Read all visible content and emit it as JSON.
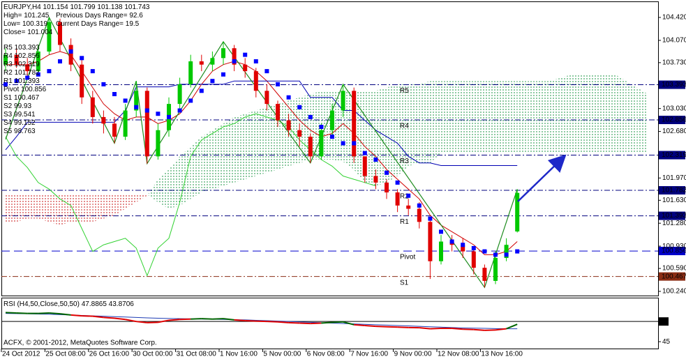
{
  "chart_data": {
    "type": "candlestick",
    "symbol": "EURJPY,H4",
    "info": [
      {
        "label": "High=",
        "value": 101.245
      },
      {
        "label": "Low=",
        "value": 100.319
      },
      {
        "label": "Close=",
        "value": 101.004
      },
      {
        "label": "Previous Days Range=",
        "value": 92.6
      },
      {
        "label": "Current Days Range=",
        "value": 19.5
      }
    ],
    "categories": [
      "24 Oct 2012",
      null,
      null,
      null,
      "25 Oct 08:00",
      null,
      null,
      null,
      "26 Oct 16:00",
      null,
      null,
      null,
      "30 Oct 00:00",
      null,
      null,
      null,
      "31 Oct 08:00",
      null,
      null,
      null,
      "1 Nov 16:00",
      null,
      null,
      null,
      "5 Nov 00:00",
      null,
      null,
      null,
      "6 Nov 08:00",
      null,
      null,
      null,
      "7 Nov 16:00",
      null,
      null,
      null,
      "9 Nov 00:00",
      null,
      null,
      null,
      "12 Nov 08:00",
      null,
      null,
      null,
      "13 Nov 16:00",
      null,
      null,
      null
    ],
    "open": [
      103.7,
      103.85,
      103.7,
      103.6,
      103.9,
      104.35,
      104.0,
      103.7,
      103.2,
      102.9,
      102.8,
      102.6,
      103.0,
      103.3,
      102.3,
      102.7,
      103.1,
      103.4,
      103.75,
      103.7,
      103.8,
      103.95,
      103.7,
      103.6,
      103.3,
      103.1,
      102.85,
      102.7,
      102.6,
      102.3,
      102.7,
      103.0,
      103.3,
      102.3,
      102.0,
      101.9,
      101.75,
      101.55,
      101.5,
      101.3,
      100.7,
      101.0,
      100.95,
      100.85,
      100.6,
      100.4,
      100.75,
      101.154
    ],
    "high": [
      103.95,
      103.95,
      103.8,
      104.0,
      104.42,
      104.4,
      104.1,
      103.8,
      103.3,
      103.0,
      102.9,
      103.1,
      103.45,
      103.35,
      102.8,
      103.2,
      103.5,
      103.85,
      103.85,
      103.9,
      104.05,
      104.0,
      103.8,
      103.65,
      103.4,
      103.15,
      102.95,
      102.8,
      102.65,
      102.8,
      103.1,
      103.4,
      103.35,
      102.3,
      102.1,
      101.95,
      101.8,
      101.65,
      101.6,
      101.35,
      101.1,
      101.1,
      101.05,
      100.9,
      100.65,
      100.85,
      101.05,
      101.799
    ],
    "low": [
      103.6,
      103.65,
      103.5,
      103.55,
      103.85,
      103.9,
      103.6,
      103.1,
      102.8,
      102.65,
      102.5,
      102.55,
      102.9,
      102.19,
      102.25,
      102.6,
      103.0,
      103.35,
      103.6,
      103.6,
      103.7,
      103.6,
      103.5,
      103.2,
      103.0,
      102.75,
      102.6,
      102.45,
      102.2,
      102.25,
      102.6,
      102.9,
      102.2,
      101.9,
      101.8,
      101.65,
      101.45,
      101.4,
      101.2,
      100.43,
      100.65,
      100.85,
      100.75,
      100.5,
      100.3,
      100.35,
      100.7,
      101.138
    ],
    "close": [
      103.85,
      103.7,
      103.6,
      103.9,
      104.35,
      104.0,
      103.7,
      103.2,
      102.9,
      102.8,
      102.6,
      103.0,
      103.3,
      102.3,
      102.7,
      103.1,
      103.4,
      103.75,
      103.7,
      103.8,
      103.95,
      103.7,
      103.6,
      103.3,
      103.1,
      102.85,
      102.7,
      102.6,
      102.3,
      102.7,
      103.0,
      103.3,
      102.3,
      102.0,
      101.9,
      101.75,
      101.55,
      101.5,
      101.3,
      100.7,
      101.0,
      100.95,
      100.85,
      100.6,
      100.4,
      100.75,
      100.95,
      101.743
    ],
    "up_color": "#00c800",
    "down_color": "#e00000",
    "ylim": [
      100.176,
      104.654
    ],
    "yticks": [
      {
        "value": 104.42,
        "label": "104.420"
      },
      {
        "value": 104.07,
        "label": "104.070"
      },
      {
        "value": 103.73,
        "label": "103.730"
      },
      {
        "value": 103.03,
        "label": "103.030"
      },
      {
        "value": 102.68,
        "label": "102.680"
      },
      {
        "value": 101.97,
        "label": "101.970"
      },
      {
        "value": 101.63,
        "label": "101.630"
      },
      {
        "value": 101.28,
        "label": "101.280"
      },
      {
        "value": 100.93,
        "label": "100.930"
      },
      {
        "value": 100.59,
        "label": "100.590"
      },
      {
        "value": 100.24,
        "label": "100.240"
      }
    ],
    "lines": [
      {
        "color": "#d00000",
        "values": [
          103.7,
          103.7,
          103.7,
          103.75,
          103.85,
          103.9,
          103.85,
          103.6,
          103.35,
          103.1,
          102.95,
          102.85,
          102.9,
          102.9,
          102.8,
          102.85,
          102.95,
          103.15,
          103.4,
          103.6,
          103.7,
          103.75,
          103.7,
          103.6,
          103.45,
          103.25,
          103.05,
          102.85,
          102.7,
          102.6,
          102.65,
          102.8,
          102.65,
          102.45,
          102.3,
          102.1,
          101.95,
          101.8,
          101.65,
          101.4,
          101.25,
          101.15,
          101.05,
          100.95,
          100.8,
          100.8,
          100.85,
          101.0
        ]
      },
      {
        "color": "#0000b4",
        "values": [
          102.4,
          102.6,
          102.82,
          102.82,
          102.82,
          102.82,
          102.82,
          102.82,
          102.82,
          102.82,
          102.82,
          103.0,
          103.36,
          103.36,
          103.36,
          103.36,
          103.4,
          103.4,
          103.4,
          103.4,
          103.4,
          103.45,
          103.45,
          103.45,
          103.45,
          103.45,
          103.45,
          103.45,
          103.2,
          103.2,
          103.2,
          103.0,
          103.0,
          102.85,
          102.7,
          102.6,
          102.5,
          102.3,
          102.2,
          102.2,
          102.16,
          102.16,
          102.16,
          102.16,
          102.16,
          102.16,
          102.16,
          102.16
        ]
      },
      {
        "color": "#32d232",
        "values": [
          102.6,
          102.3,
          102.13,
          101.9,
          101.8,
          101.65,
          101.55,
          101.2,
          100.85,
          100.95,
          101.0,
          101.05,
          100.9,
          100.48,
          100.9,
          101.05,
          101.6,
          102.3,
          102.55,
          102.65,
          102.75,
          102.8,
          102.9,
          102.95,
          102.9,
          102.85,
          102.75,
          102.55,
          102.4,
          102.25,
          102.15,
          102.0,
          101.95,
          101.9,
          101.85,
          null,
          null,
          null,
          null,
          null,
          null,
          null,
          null,
          null,
          null,
          null,
          null,
          null
        ]
      }
    ],
    "psar": {
      "color": "#0000ff",
      "values": [
        103.4,
        103.45,
        103.5,
        103.55,
        103.6,
        103.75,
        103.9,
        103.8,
        103.6,
        103.4,
        103.25,
        103.15,
        103.05,
        103.0,
        102.95,
        102.9,
        103.0,
        103.15,
        103.3,
        103.45,
        103.55,
        103.75,
        103.85,
        103.75,
        103.6,
        103.4,
        103.2,
        103.05,
        102.9,
        102.75,
        102.6,
        102.5,
        102.5,
        102.35,
        102.25,
        102.05,
        101.9,
        101.7,
        101.55,
        101.35,
        101.15,
        101.0,
        100.95,
        100.9,
        100.85,
        100.8,
        100.8,
        100.85
      ]
    },
    "zigzag": {
      "color": "#1e8c1e",
      "x": [
        0,
        4,
        10,
        12,
        13,
        20,
        28,
        31,
        44,
        47
      ],
      "values": [
        102.56,
        104.42,
        102.5,
        103.45,
        102.19,
        104.05,
        102.2,
        103.4,
        100.3,
        101.799
      ]
    },
    "cloud": {
      "up_color": "#1e9646",
      "down_color": "#c81414",
      "span_a": [
        101.3,
        101.3,
        101.35,
        101.35,
        101.3,
        101.25,
        101.3,
        101.3,
        101.3,
        101.35,
        101.4,
        101.5,
        101.6,
        101.7,
        101.95,
        102.1,
        102.3,
        102.45,
        102.6,
        102.7,
        102.8,
        102.9,
        102.95,
        103.0,
        103.05,
        103.1,
        103.15,
        103.2,
        103.25,
        103.3,
        103.3,
        103.3,
        103.3,
        103.3,
        103.3,
        103.35,
        103.4,
        103.4,
        103.4,
        103.45,
        103.45,
        103.45,
        103.45,
        103.45,
        103.45,
        103.45,
        103.45,
        103.45,
        103.45,
        103.45,
        103.45,
        103.5,
        103.55,
        103.55,
        103.55,
        103.55,
        103.55,
        103.45,
        103.35,
        103.25
      ],
      "span_b": [
        101.72,
        101.72,
        101.72,
        101.72,
        101.72,
        101.72,
        101.72,
        101.72,
        101.72,
        101.72,
        101.72,
        101.72,
        101.72,
        101.72,
        101.6,
        101.5,
        101.55,
        101.65,
        101.75,
        101.8,
        101.85,
        101.9,
        101.95,
        102.0,
        102.05,
        102.1,
        102.15,
        102.2,
        102.25,
        102.25,
        102.25,
        102.22,
        102.1,
        101.9,
        101.85,
        101.9,
        102.0,
        102.15,
        102.2,
        102.2,
        102.35,
        102.35,
        102.35,
        102.35,
        102.35,
        102.35,
        102.35,
        102.35,
        102.35,
        102.35,
        102.35,
        102.35,
        102.35,
        102.35,
        102.35,
        102.35,
        102.35,
        102.35,
        102.35,
        102.35
      ]
    },
    "pivots": [
      {
        "name": "R5",
        "value": 103.393,
        "color": "#00007f"
      },
      {
        "name": "R4",
        "value": 102.856,
        "color": "#00007f"
      },
      {
        "name": "R3",
        "value": 102.319,
        "color": "#00007f"
      },
      {
        "name": "R2",
        "value": 101.782,
        "color": "#00007f"
      },
      {
        "name": "R1",
        "value": 101.393,
        "color": "#00007f"
      },
      {
        "name": "Pivot",
        "value": 100.856,
        "color": "#0000cc"
      },
      {
        "name": "S1",
        "value": 100.467,
        "color": "#8b2d14"
      },
      {
        "name": "S2",
        "value": 99.93,
        "color": "#8b2d14"
      },
      {
        "name": "S3",
        "value": 99.541,
        "color": "#8b2d14"
      },
      {
        "name": "S4",
        "value": 99.152,
        "color": "#8b2d14"
      },
      {
        "name": "S5",
        "value": 98.763,
        "color": "#8b2d14"
      }
    ],
    "rsi": {
      "title": "RSI (H4,50,Close,50,50)",
      "readings": [
        47.8865,
        43.8706
      ],
      "ylim": [
        43.3,
        55.9
      ],
      "yticks": [
        45
      ],
      "levels": [
        50
      ],
      "up_color": "#006400",
      "down_color": "#e00000",
      "ma_color": "#1e3cb4",
      "values": [
        52.2,
        52.1,
        52.0,
        52.0,
        52.1,
        51.9,
        51.6,
        51.4,
        51.3,
        51.0,
        50.8,
        50.5,
        50.0,
        49.7,
        49.8,
        50.3,
        50.5,
        50.6,
        50.7,
        50.6,
        50.7,
        50.4,
        50.2,
        50.1,
        50.0,
        49.9,
        49.7,
        49.6,
        49.5,
        49.6,
        49.8,
        49.9,
        49.2,
        49.0,
        48.8,
        48.7,
        48.6,
        48.5,
        48.45,
        48.2,
        48.3,
        48.3,
        48.1,
        48.0,
        47.8,
        47.9,
        48.2,
        49.3
      ],
      "ma": [
        52.0,
        51.95,
        51.9,
        51.85,
        51.8,
        51.7,
        51.6,
        51.5,
        51.4,
        51.3,
        51.2,
        51.1,
        51.0,
        50.9,
        50.8,
        50.75,
        50.7,
        50.65,
        50.6,
        50.55,
        50.5,
        50.45,
        50.4,
        50.3,
        50.2,
        50.1,
        50.0,
        49.9,
        49.8,
        49.7,
        49.6,
        49.5,
        49.4,
        49.3,
        49.2,
        49.1,
        49.0,
        48.9,
        48.8,
        48.7,
        48.6,
        48.5,
        48.4,
        48.35,
        48.3,
        48.25,
        48.2,
        48.2
      ]
    },
    "copyright": "ACFX, © 2001-2012, MetaQuotes Software Corp."
  }
}
